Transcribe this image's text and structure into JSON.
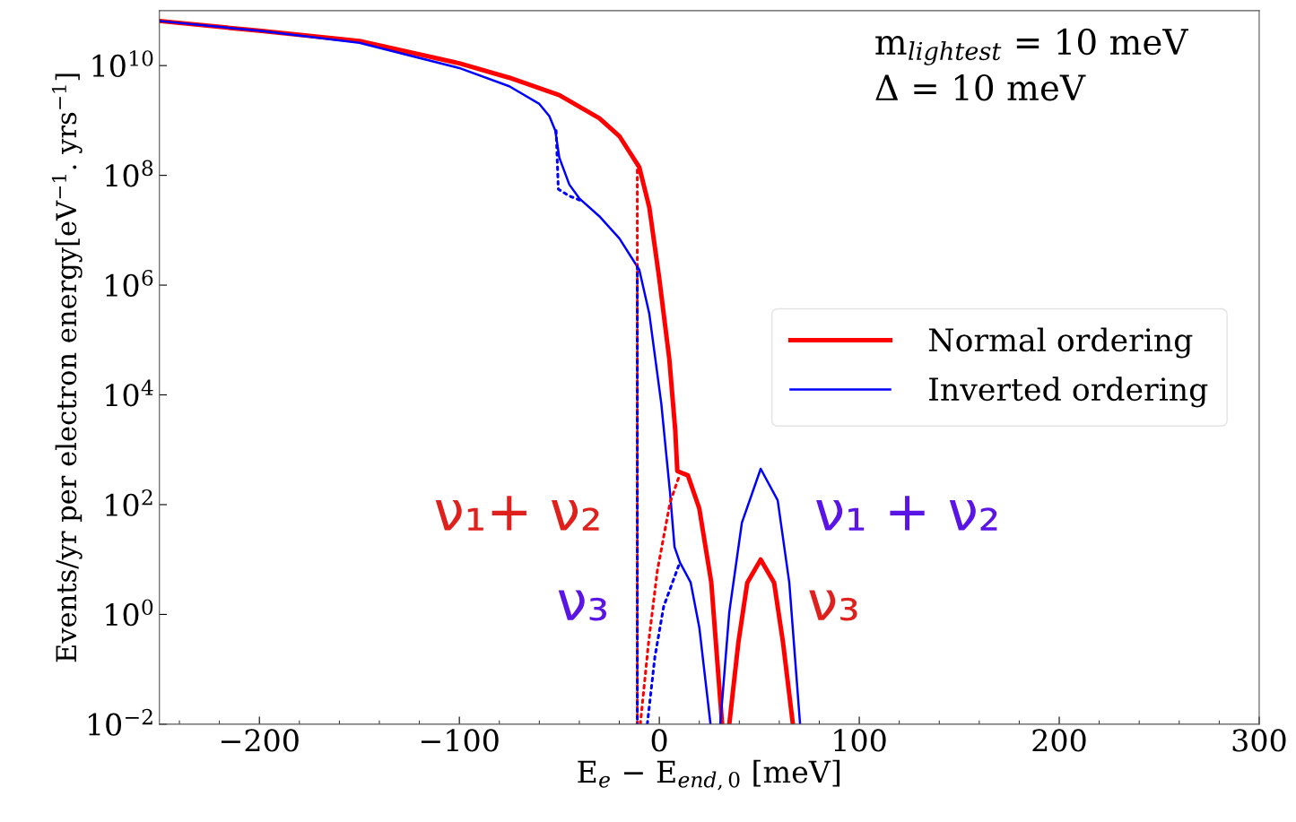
{
  "chart_data": {
    "type": "line",
    "xlabel": "E$_{e}$ − E$_{end,0}$ [meV]",
    "ylabel": "Events/yr per electron energy[eV$^{−1}$. yrs$^{−1}$]",
    "log": "y",
    "xlim": [
      -250,
      300
    ],
    "ylim": [
      0.01,
      100000000000.0
    ],
    "xticks": [
      -200,
      -100,
      0,
      100,
      200,
      300
    ],
    "yticks": [
      {
        "value": 0.01,
        "label": "10$^{−2}$"
      },
      {
        "value": 1,
        "label": "10$^{0}$"
      },
      {
        "value": 100,
        "label": "10$^{2}$"
      },
      {
        "value": 10000,
        "label": "10$^{4}$"
      },
      {
        "value": 1000000,
        "label": "10$^{6}$"
      },
      {
        "value": 100000000,
        "label": "10$^{8}$"
      },
      {
        "value": 10000000000,
        "label": "10$^{10}$"
      }
    ],
    "grid": false,
    "legend": "right",
    "marker": "none",
    "series": [
      {
        "name": "Normal ordering",
        "color": "#ff0000",
        "line_style": "solid",
        "x": [
          -250,
          -200,
          -150,
          -100,
          -75,
          -50,
          -30,
          -20,
          -10,
          -5,
          0,
          5,
          8,
          9,
          14.3,
          20,
          26,
          31.4,
          33,
          35,
          39.5,
          44,
          50.7,
          57.4,
          61.9,
          66.8
        ],
        "values": [
          65000000000.0,
          43000000000.0,
          28000000000.0,
          11000000000.0,
          6000000000.0,
          2900000000.0,
          1100000000.0,
          520000000.0,
          140000000.0,
          26000000.0,
          1300000.0,
          45000.0,
          2200,
          410,
          340,
          85,
          3.8,
          0.01,
          null,
          0.01,
          0.3,
          3.8,
          10,
          3.8,
          0.3,
          0.01
        ]
      },
      {
        "name": "Inverted ordering",
        "color": "#0000ff",
        "line_style": "solid",
        "x": [
          -250,
          -200,
          -150,
          -100,
          -75,
          -60,
          -55,
          -52,
          -50,
          -45,
          -40,
          -30,
          -20,
          -10,
          -5,
          1,
          5.4,
          7.6,
          10.3,
          15.7,
          20,
          25.6,
          28,
          30.5,
          35,
          41.3,
          50.7,
          59.2,
          65,
          70.4
        ],
        "values": [
          65000000000.0,
          43000000000.0,
          26000000000.0,
          9000000000.0,
          4200000000.0,
          2000000000.0,
          1200000000.0,
          650000000.0,
          210000000.0,
          68000000.0,
          38000000.0,
          18000000.0,
          7100000.0,
          1900000.0,
          300000.0,
          6900,
          160,
          17,
          8.9,
          3.8,
          0.58,
          0.01,
          null,
          0.01,
          1.1,
          47,
          450,
          120,
          3.8,
          0.01
        ]
      },
      {
        "color": "#ff0000",
        "line_style": "dotted",
        "x": [
          -11,
          -11,
          -10,
          -9.5,
          -5.4,
          -1,
          5.4,
          10.3
        ],
        "values": [
          170000000.0,
          0.01,
          null,
          0.01,
          0.3,
          6.2,
          110,
          360
        ]
      },
      {
        "color": "#0000ff",
        "line_style": "dotted",
        "x": [
          -51.6,
          -50.5,
          -45,
          -39.5,
          -30,
          -11,
          -11,
          -8,
          -6,
          -2.2,
          2.2,
          10.3
        ],
        "values": [
          650000000.0,
          56000000.0,
          42000000.0,
          35000000.0,
          null,
          2200000.0,
          0.01,
          null,
          0.01,
          0.17,
          1.4,
          8.9
        ]
      }
    ],
    "annotations": [
      "m$_{lightest}$ = 10 meV\nΔ = 10 meV",
      "ν₁+ ν₂",
      "ν₃",
      "ν₁ + ν₂",
      "ν₃"
    ]
  }
}
